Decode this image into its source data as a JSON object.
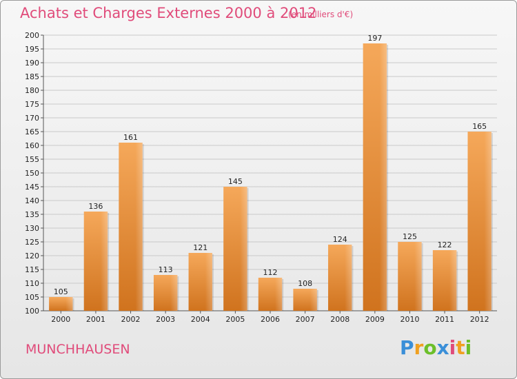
{
  "header": {
    "title": "Achats et Charges Externes 2000 à 2012",
    "unit": "(en milliers d'€)"
  },
  "footer": {
    "place": "MUNCHHAUSEN",
    "logo_letters": [
      "P",
      "r",
      "o",
      "x",
      "i",
      "t",
      "i"
    ]
  },
  "colors": {
    "title": "#e04b7a",
    "bar_top": "#f5a85a",
    "bar_bottom": "#d0731e",
    "grid": "#c9c9c9"
  },
  "chart_data": {
    "type": "bar",
    "title": "Achats et Charges Externes 2000 à 2012",
    "subtitle": "(en milliers d'€)",
    "categories": [
      "2000",
      "2001",
      "2002",
      "2003",
      "2004",
      "2005",
      "2006",
      "2007",
      "2008",
      "2009",
      "2010",
      "2011",
      "2012"
    ],
    "values": [
      105,
      136,
      161,
      113,
      121,
      145,
      112,
      108,
      124,
      197,
      125,
      122,
      165
    ],
    "ylim": [
      100,
      200
    ],
    "ytick_step": 5,
    "xlabel": "",
    "ylabel": "",
    "grid": true,
    "legend": "none"
  }
}
